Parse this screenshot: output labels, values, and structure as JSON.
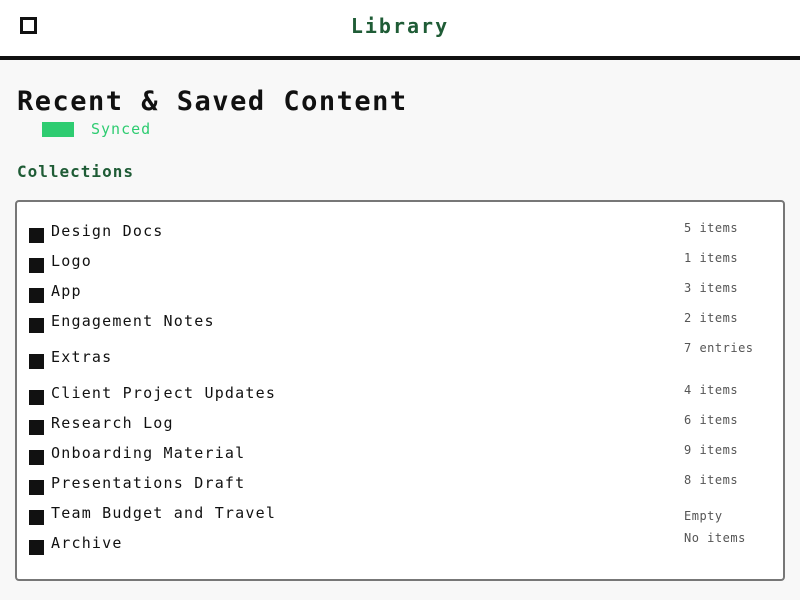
{
  "header": {
    "title": "Library",
    "menu_icon": "menu-icon"
  },
  "page": {
    "title": "Recent & Saved Content",
    "status": "Synced",
    "status_color": "#2ecc71",
    "section_heading": "Collections"
  },
  "items": [
    {
      "label": "Design Docs",
      "meta": "5 items",
      "icon": "folder-icon"
    },
    {
      "label": "Logo",
      "meta": "1 items",
      "icon": "folder-icon"
    },
    {
      "label": "App",
      "meta": "3 items",
      "icon": "folder-icon"
    },
    {
      "label": "Engagement Notes",
      "meta": "2 items",
      "icon": "folder-icon"
    },
    {
      "label": "Extras",
      "meta": "7 entries",
      "icon": "folder-icon"
    },
    {
      "label": "Client Project Updates",
      "meta": "4 items",
      "icon": "folder-icon"
    },
    {
      "label": "Research Log",
      "meta": "6 items",
      "icon": "folder-icon"
    },
    {
      "label": "Onboarding Material",
      "meta": "9 items",
      "icon": "folder-icon"
    },
    {
      "label": "Presentations Draft",
      "meta": "8 items",
      "icon": "folder-icon"
    },
    {
      "label": "Team Budget and Travel",
      "meta": "Empty",
      "icon": "folder-icon"
    },
    {
      "label": "Archive",
      "meta": "No items",
      "icon": "folder-icon"
    }
  ]
}
